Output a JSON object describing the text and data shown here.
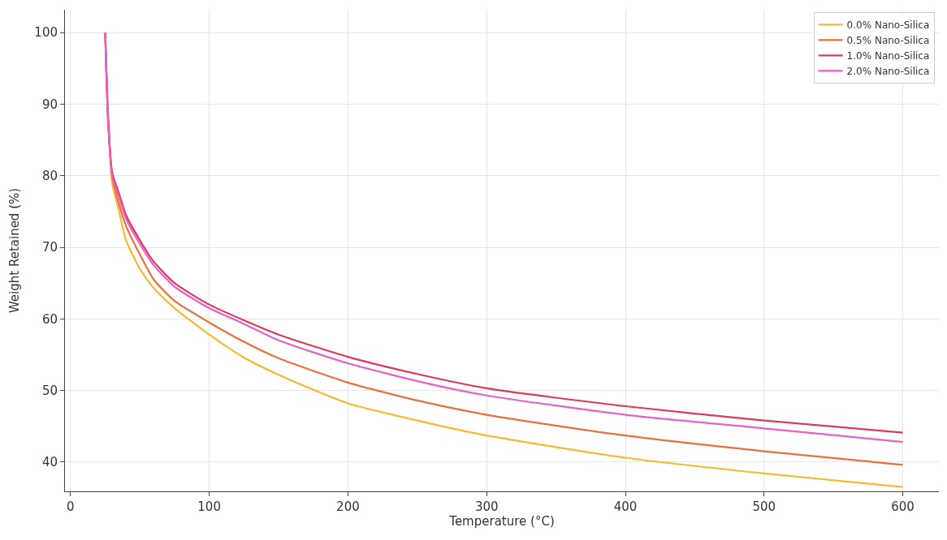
{
  "chart_data": {
    "type": "line",
    "xlabel": "Temperature (°C)",
    "ylabel": "Weight Retained (%)",
    "x": [
      25,
      27,
      30,
      35,
      40,
      50,
      60,
      75,
      100,
      125,
      150,
      200,
      250,
      300,
      400,
      500,
      600
    ],
    "series": [
      {
        "name": "0.0% Nano-Silica",
        "color": "#f5b82e",
        "values": [
          100,
          88,
          79,
          75,
          71,
          67,
          64.3,
          61.5,
          57.8,
          54.6,
          52.2,
          48.2,
          45.8,
          43.7,
          40.6,
          38.4,
          36.5
        ]
      },
      {
        "name": "0.5% Nano-Silica",
        "color": "#e8703a",
        "values": [
          100,
          89,
          80,
          76,
          73,
          69,
          65.5,
          62.5,
          59.5,
          56.8,
          54.5,
          51.1,
          48.6,
          46.6,
          43.7,
          41.5,
          39.6
        ]
      },
      {
        "name": "1.0% Nano-Silica",
        "color": "#dc3a5a",
        "values": [
          100,
          88,
          80.5,
          77.5,
          74.5,
          71,
          68,
          65,
          62,
          59.8,
          57.8,
          54.7,
          52.3,
          50.3,
          47.8,
          45.8,
          44.1
        ]
      },
      {
        "name": "2.0% Nano-Silica",
        "color": "#e85fc8",
        "values": [
          100,
          88,
          80,
          77,
          74,
          70.5,
          67.5,
          64.5,
          61.5,
          59.3,
          57,
          53.8,
          51.3,
          49.3,
          46.6,
          44.7,
          42.8
        ]
      }
    ],
    "xlim": [
      -4,
      626
    ],
    "xticks": [
      0,
      100,
      200,
      300,
      400,
      500,
      600
    ],
    "ylim": [
      35.9,
      103.2
    ],
    "yticks": [
      40,
      50,
      60,
      70,
      80,
      90,
      100
    ],
    "grid": true,
    "legend": "top right",
    "line_style": "solid",
    "marker": "none"
  }
}
